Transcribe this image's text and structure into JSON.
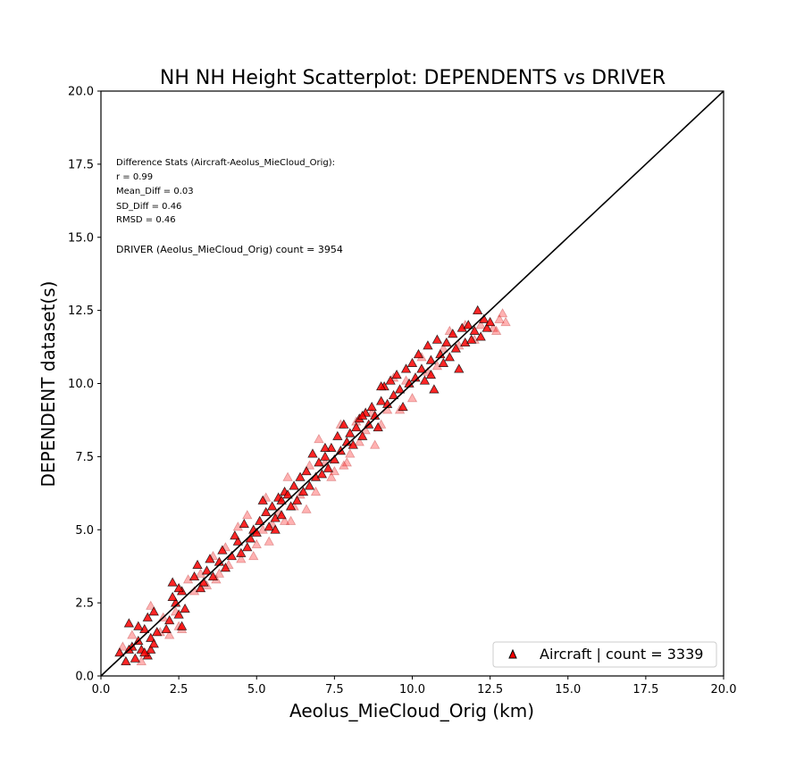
{
  "chart_data": {
    "type": "scatter",
    "title": "NH NH Height Scatterplot: DEPENDENTS vs DRIVER",
    "xlabel": "Aeolus_MieCloud_Orig (km)",
    "ylabel": "DEPENDENT dataset(s)",
    "xlim": [
      0,
      20
    ],
    "ylim": [
      0,
      20
    ],
    "xticks": [
      "0.0",
      "2.5",
      "5.0",
      "7.5",
      "10.0",
      "12.5",
      "15.0",
      "17.5",
      "20.0"
    ],
    "yticks": [
      "0.0",
      "2.5",
      "5.0",
      "7.5",
      "10.0",
      "12.5",
      "15.0",
      "17.5",
      "20.0"
    ],
    "grid": false,
    "legend_position": "lower-right",
    "marker": "triangle",
    "marker_color": "#ff0000",
    "reference_line": {
      "label": "1:1 line",
      "color": "#000000",
      "from": [
        0,
        0
      ],
      "to": [
        20,
        20
      ]
    },
    "stats": [
      "Difference Stats (Aircraft-Aeolus_MieCloud_Orig):",
      "r = 0.99",
      "Mean_Diff = 0.03",
      "SD_Diff = 0.46",
      "RMSD = 0.46"
    ],
    "driver_text": "DRIVER (Aeolus_MieCloud_Orig) count = 3954",
    "series": [
      {
        "name": "Aircraft | count = 3339",
        "points": [
          [
            0.6,
            0.8
          ],
          [
            0.8,
            0.5
          ],
          [
            0.9,
            1.8
          ],
          [
            1.0,
            1.0
          ],
          [
            1.1,
            0.6
          ],
          [
            1.2,
            1.2
          ],
          [
            1.3,
            0.9
          ],
          [
            1.4,
            1.6
          ],
          [
            1.5,
            0.7
          ],
          [
            1.6,
            1.3
          ],
          [
            1.7,
            2.2
          ],
          [
            1.6,
            0.9
          ],
          [
            1.8,
            1.5
          ],
          [
            1.5,
            2.0
          ],
          [
            1.2,
            1.7
          ],
          [
            0.9,
            0.9
          ],
          [
            1.7,
            1.1
          ],
          [
            1.4,
            0.8
          ],
          [
            2.1,
            1.6
          ],
          [
            2.3,
            3.2
          ],
          [
            2.4,
            2.5
          ],
          [
            2.5,
            2.1
          ],
          [
            2.6,
            2.9
          ],
          [
            2.2,
            1.9
          ],
          [
            2.7,
            2.3
          ],
          [
            2.5,
            3.0
          ],
          [
            2.3,
            2.7
          ],
          [
            2.6,
            1.7
          ],
          [
            3.0,
            3.4
          ],
          [
            3.1,
            3.8
          ],
          [
            3.2,
            3.0
          ],
          [
            3.4,
            3.6
          ],
          [
            3.5,
            4.0
          ],
          [
            3.3,
            3.2
          ],
          [
            3.6,
            3.4
          ],
          [
            3.8,
            3.9
          ],
          [
            3.9,
            4.3
          ],
          [
            4.0,
            3.7
          ],
          [
            4.2,
            4.1
          ],
          [
            4.4,
            4.6
          ],
          [
            4.5,
            4.2
          ],
          [
            4.3,
            4.8
          ],
          [
            4.6,
            5.2
          ],
          [
            4.8,
            4.7
          ],
          [
            4.9,
            5.0
          ],
          [
            4.7,
            4.4
          ],
          [
            5.0,
            4.9
          ],
          [
            5.1,
            5.3
          ],
          [
            5.2,
            6.0
          ],
          [
            5.3,
            5.6
          ],
          [
            5.4,
            5.1
          ],
          [
            5.5,
            5.8
          ],
          [
            5.6,
            5.4
          ],
          [
            5.7,
            6.1
          ],
          [
            5.8,
            5.5
          ],
          [
            5.9,
            6.3
          ],
          [
            5.6,
            5.0
          ],
          [
            5.8,
            6.0
          ],
          [
            6.0,
            6.2
          ],
          [
            6.1,
            5.8
          ],
          [
            6.2,
            6.5
          ],
          [
            6.3,
            6.0
          ],
          [
            6.4,
            6.8
          ],
          [
            6.5,
            6.3
          ],
          [
            6.6,
            7.0
          ],
          [
            6.7,
            6.5
          ],
          [
            6.8,
            7.6
          ],
          [
            6.9,
            6.8
          ],
          [
            7.0,
            7.3
          ],
          [
            7.1,
            6.9
          ],
          [
            7.2,
            7.5
          ],
          [
            7.3,
            7.1
          ],
          [
            7.4,
            7.8
          ],
          [
            7.5,
            7.4
          ],
          [
            7.6,
            8.2
          ],
          [
            7.7,
            7.7
          ],
          [
            7.8,
            8.6
          ],
          [
            7.9,
            8.0
          ],
          [
            8.0,
            8.3
          ],
          [
            8.1,
            7.9
          ],
          [
            8.2,
            8.5
          ],
          [
            8.3,
            8.8
          ],
          [
            8.4,
            8.2
          ],
          [
            8.5,
            9.0
          ],
          [
            8.6,
            8.6
          ],
          [
            8.7,
            9.2
          ],
          [
            8.8,
            8.9
          ],
          [
            8.9,
            8.5
          ],
          [
            9.0,
            9.4
          ],
          [
            9.1,
            9.9
          ],
          [
            9.2,
            9.3
          ],
          [
            9.3,
            10.1
          ],
          [
            9.4,
            9.6
          ],
          [
            9.5,
            10.3
          ],
          [
            9.6,
            9.8
          ],
          [
            9.7,
            9.2
          ],
          [
            9.8,
            10.5
          ],
          [
            9.9,
            10.0
          ],
          [
            10.0,
            10.7
          ],
          [
            10.1,
            10.2
          ],
          [
            10.2,
            11.0
          ],
          [
            10.3,
            10.5
          ],
          [
            10.4,
            10.1
          ],
          [
            10.5,
            11.3
          ],
          [
            10.6,
            10.8
          ],
          [
            10.7,
            9.8
          ],
          [
            10.8,
            11.5
          ],
          [
            10.9,
            11.0
          ],
          [
            11.0,
            10.7
          ],
          [
            11.1,
            11.4
          ],
          [
            11.2,
            10.9
          ],
          [
            11.3,
            11.7
          ],
          [
            11.4,
            11.2
          ],
          [
            11.5,
            10.5
          ],
          [
            11.6,
            11.9
          ],
          [
            11.7,
            11.4
          ],
          [
            11.8,
            12.0
          ],
          [
            11.9,
            11.5
          ],
          [
            12.0,
            11.8
          ],
          [
            12.1,
            12.5
          ],
          [
            12.2,
            11.6
          ],
          [
            12.3,
            12.2
          ],
          [
            12.4,
            11.9
          ],
          [
            12.5,
            12.1
          ],
          [
            10.6,
            10.3
          ],
          [
            9.0,
            9.9
          ],
          [
            8.4,
            8.9
          ],
          [
            7.2,
            7.8
          ]
        ]
      }
    ],
    "faded_points": [
      [
        0.7,
        1.0
      ],
      [
        1.0,
        1.4
      ],
      [
        1.3,
        0.5
      ],
      [
        1.6,
        2.4
      ],
      [
        1.9,
        1.5
      ],
      [
        2.0,
        2.0
      ],
      [
        2.2,
        1.4
      ],
      [
        2.4,
        2.2
      ],
      [
        2.6,
        1.6
      ],
      [
        2.8,
        3.3
      ],
      [
        3.0,
        2.9
      ],
      [
        3.2,
        3.5
      ],
      [
        3.4,
        3.1
      ],
      [
        3.6,
        4.1
      ],
      [
        3.8,
        3.5
      ],
      [
        4.0,
        4.4
      ],
      [
        4.1,
        3.8
      ],
      [
        4.4,
        5.1
      ],
      [
        4.5,
        4.0
      ],
      [
        4.7,
        5.5
      ],
      [
        5.0,
        4.5
      ],
      [
        5.2,
        5.0
      ],
      [
        5.3,
        6.1
      ],
      [
        5.5,
        5.2
      ],
      [
        5.7,
        5.6
      ],
      [
        5.9,
        5.3
      ],
      [
        6.0,
        6.8
      ],
      [
        6.2,
        5.8
      ],
      [
        6.4,
        6.2
      ],
      [
        6.6,
        5.7
      ],
      [
        6.7,
        7.2
      ],
      [
        6.9,
        6.3
      ],
      [
        7.0,
        8.1
      ],
      [
        7.2,
        7.3
      ],
      [
        7.4,
        6.8
      ],
      [
        7.5,
        7.0
      ],
      [
        7.7,
        8.6
      ],
      [
        7.8,
        7.2
      ],
      [
        8.0,
        7.6
      ],
      [
        8.2,
        8.7
      ],
      [
        8.3,
        8.0
      ],
      [
        8.5,
        8.4
      ],
      [
        8.7,
        9.0
      ],
      [
        8.8,
        7.9
      ],
      [
        9.0,
        8.6
      ],
      [
        9.2,
        9.1
      ],
      [
        9.4,
        10.2
      ],
      [
        9.6,
        9.1
      ],
      [
        9.8,
        10.1
      ],
      [
        10.0,
        9.5
      ],
      [
        10.3,
        10.9
      ],
      [
        10.5,
        10.4
      ],
      [
        10.8,
        10.6
      ],
      [
        11.0,
        11.2
      ],
      [
        11.2,
        11.8
      ],
      [
        11.5,
        11.3
      ],
      [
        11.7,
        12.0
      ],
      [
        12.0,
        11.5
      ],
      [
        12.2,
        12.0
      ],
      [
        12.6,
        11.9
      ],
      [
        12.8,
        12.2
      ],
      [
        13.0,
        12.1
      ],
      [
        12.9,
        12.4
      ],
      [
        12.7,
        11.8
      ],
      [
        5.4,
        4.6
      ],
      [
        4.9,
        4.1
      ],
      [
        3.7,
        3.3
      ],
      [
        2.5,
        1.7
      ],
      [
        6.1,
        5.3
      ],
      [
        7.9,
        7.3
      ]
    ]
  }
}
